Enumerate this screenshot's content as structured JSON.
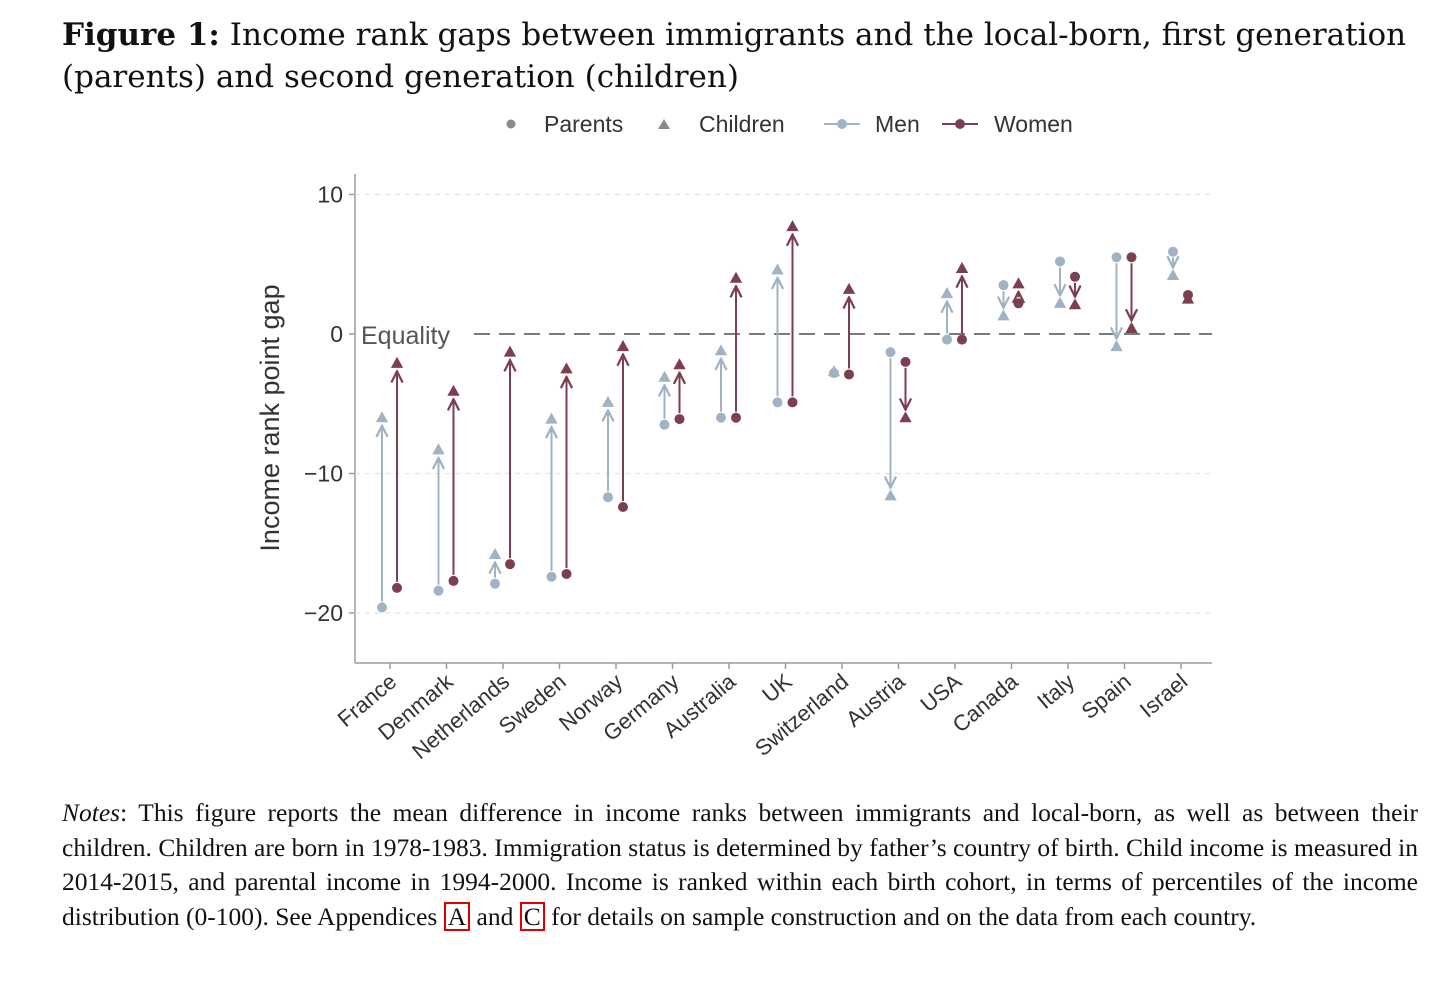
{
  "caption": {
    "label": "Figure 1:",
    "text": "Income rank gaps between immigrants and the local-born, first generation (parents) and second generation (children)"
  },
  "colors": {
    "men": "#9fb3c5",
    "women": "#7b3f4e",
    "axis": "#9a9a9a",
    "grid": "#e3e3e3",
    "equality": "#7a7a7a",
    "text": "#333333"
  },
  "chart_data": {
    "type": "scatter",
    "title": "",
    "xlabel": "",
    "ylabel": "Income rank point gap",
    "ylim": [
      -23.5,
      11.5
    ],
    "yticks": [
      10,
      0,
      -10,
      -20
    ],
    "ytick_labels": [
      "10",
      "0",
      "−10",
      "−20"
    ],
    "grid": true,
    "reference_line": {
      "y": 0,
      "label": "Equality",
      "style": "dashed"
    },
    "legend": {
      "position": "top",
      "entries": [
        "Parents",
        "Children",
        "Men",
        "Women"
      ]
    },
    "categories": [
      "France",
      "Denmark",
      "Netherlands",
      "Sweden",
      "Norway",
      "Germany",
      "Australia",
      "UK",
      "Switzerland",
      "Austria",
      "USA",
      "Canada",
      "Italy",
      "Spain",
      "Israel"
    ],
    "series": [
      {
        "name": "Men",
        "parents": [
          -19.6,
          -18.4,
          -17.9,
          -17.4,
          -11.7,
          -6.5,
          -6.0,
          -4.9,
          -2.8,
          -1.3,
          -0.4,
          3.5,
          5.2,
          5.5,
          5.9
        ],
        "children": [
          -6.0,
          -8.3,
          -15.8,
          -6.1,
          -4.9,
          -3.1,
          -1.2,
          4.6,
          -2.7,
          -11.6,
          2.9,
          1.3,
          2.2,
          -0.9,
          4.2
        ]
      },
      {
        "name": "Women",
        "parents": [
          -18.2,
          -17.7,
          -16.5,
          -17.2,
          -12.4,
          -6.1,
          -6.0,
          -4.9,
          -2.9,
          -2.0,
          -0.4,
          2.2,
          4.1,
          5.5,
          2.8
        ],
        "children": [
          -2.1,
          -4.1,
          -1.3,
          -2.5,
          -0.9,
          -2.2,
          4.0,
          7.7,
          3.2,
          -6.0,
          4.7,
          3.6,
          2.1,
          0.4,
          2.5
        ]
      }
    ]
  },
  "notes": {
    "label": "Notes",
    "text_1": ": This figure reports the mean difference in income ranks between immigrants and local-born, as well as between their children. Children are born in 1978-1983. Immigration status is determined by father’s country of birth. Child income is measured in 2014-2015, and parental income in 1994-2000. Income is ranked within each birth cohort, in terms of percentiles of the income distribution (0-100). See Appendices ",
    "ref_a": "A",
    "text_and": " and ",
    "ref_c": "C",
    "text_2": " for details on sample construction and on the data from each country."
  }
}
